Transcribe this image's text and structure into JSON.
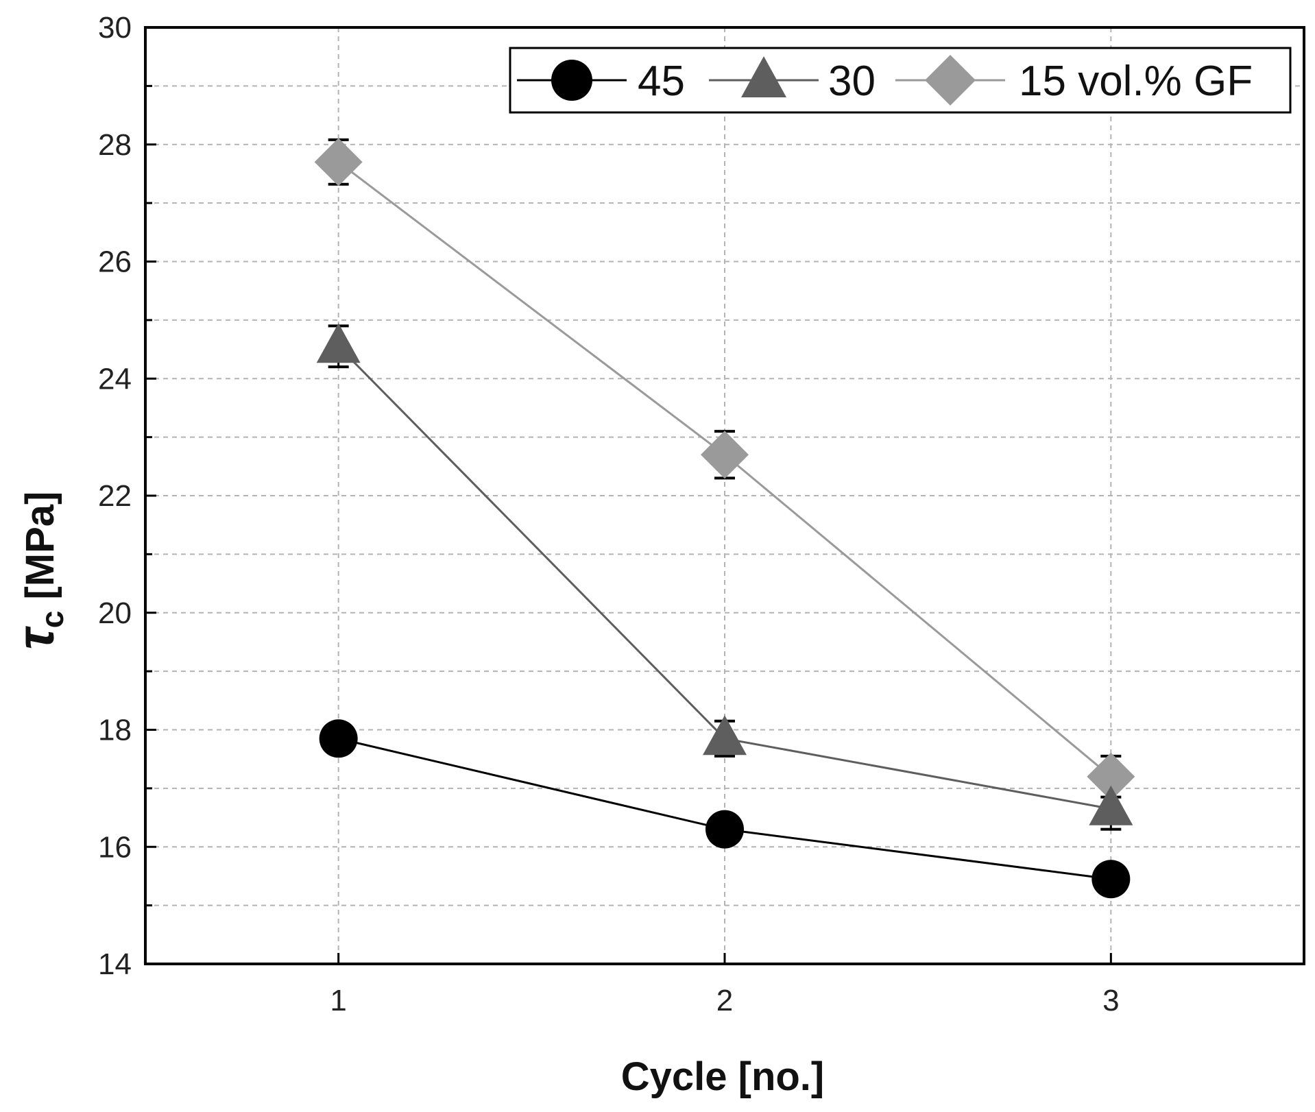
{
  "chart_data": {
    "type": "line",
    "title": "",
    "xlabel": "Cycle [no.]",
    "ylabel_symbol": "τ",
    "ylabel_subscript": "c",
    "ylabel_unit": " [MPa]",
    "x": [
      1,
      2,
      3
    ],
    "x_tick_labels": [
      "1",
      "2",
      "3"
    ],
    "xlim": [
      0.5,
      3.5
    ],
    "ylim": [
      14,
      30
    ],
    "y_ticks": [
      14,
      16,
      18,
      20,
      22,
      24,
      26,
      28,
      30
    ],
    "y_tick_labels": [
      "14",
      "16",
      "18",
      "20",
      "22",
      "24",
      "26",
      "28",
      "30"
    ],
    "grid": true,
    "legend_position": "top-right",
    "series": [
      {
        "name": "45",
        "label": "45",
        "marker": "circle",
        "color": "#000000",
        "values": [
          17.85,
          16.3,
          15.45
        ],
        "errors": [
          0,
          0,
          0
        ]
      },
      {
        "name": "30",
        "label": "30",
        "marker": "triangle",
        "color": "#5e5e5e",
        "values": [
          24.55,
          17.85,
          16.65
        ],
        "errors": [
          0.35,
          0.3,
          0.35
        ]
      },
      {
        "name": "15 vol.% GF",
        "label": "15 vol.% GF",
        "marker": "diamond",
        "color": "#9a9a9a",
        "values": [
          27.7,
          22.7,
          17.2
        ],
        "errors": [
          0.38,
          0.4,
          0.35
        ]
      }
    ]
  }
}
